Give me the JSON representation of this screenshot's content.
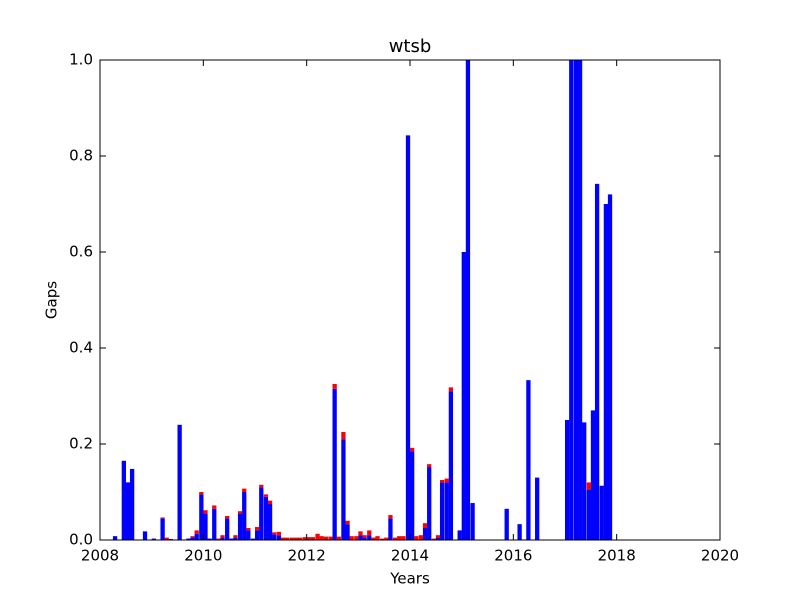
{
  "chart_data": {
    "type": "stacked_bar",
    "title": "wtsb",
    "xlabel": "Years",
    "ylabel": "Gaps",
    "x": [
      2008.25,
      2008.42,
      2008.5,
      2008.58,
      2008.83,
      2009.0,
      2009.17,
      2009.25,
      2009.33,
      2009.5,
      2009.67,
      2009.75,
      2009.83,
      2009.92,
      2010.0,
      2010.08,
      2010.17,
      2010.25,
      2010.33,
      2010.42,
      2010.5,
      2010.58,
      2010.67,
      2010.75,
      2010.83,
      2010.92,
      2011.0,
      2011.08,
      2011.17,
      2011.25,
      2011.33,
      2011.42,
      2011.5,
      2011.58,
      2011.67,
      2011.75,
      2011.83,
      2011.92,
      2012.0,
      2012.08,
      2012.17,
      2012.25,
      2012.33,
      2012.42,
      2012.5,
      2012.58,
      2012.67,
      2012.75,
      2012.83,
      2012.92,
      2013.0,
      2013.08,
      2013.17,
      2013.25,
      2013.33,
      2013.42,
      2013.5,
      2013.58,
      2013.67,
      2013.75,
      2013.83,
      2013.92,
      2014.0,
      2014.08,
      2014.17,
      2014.25,
      2014.33,
      2014.42,
      2014.5,
      2014.58,
      2014.67,
      2014.75,
      2014.92,
      2015.0,
      2015.08,
      2015.17,
      2015.83,
      2016.08,
      2016.25,
      2016.42,
      2017.0,
      2017.08,
      2017.17,
      2017.25,
      2017.33,
      2017.42,
      2017.5,
      2017.58,
      2017.67,
      2017.75,
      2017.83
    ],
    "bar_width": 0.083,
    "series": [
      {
        "color": "#0000ff",
        "values": [
          0.008,
          0.165,
          0.12,
          0.148,
          0.018,
          0.003,
          0.045,
          0,
          0.002,
          0.24,
          0.003,
          0.005,
          0.013,
          0.095,
          0.055,
          0.003,
          0.065,
          0,
          0.005,
          0.045,
          0.003,
          0.005,
          0.055,
          0.1,
          0.02,
          0.003,
          0.02,
          0.11,
          0.09,
          0.075,
          0.012,
          0.01,
          0,
          0,
          0,
          0,
          0,
          0,
          0,
          0,
          0,
          0,
          0,
          0,
          0.315,
          0,
          0.21,
          0.033,
          0,
          0,
          0.01,
          0.005,
          0.01,
          0,
          0,
          0,
          0,
          0.045,
          0,
          0,
          0,
          0.843,
          0.185,
          0,
          0,
          0.025,
          0.152,
          0,
          0.005,
          0.12,
          0.12,
          0.31,
          0.02,
          0.6,
          1.0,
          0.077,
          0.065,
          0.033,
          0.333,
          0.13,
          0.25,
          1.0,
          1.0,
          1.0,
          0.245,
          0.105,
          0.27,
          0.742,
          0.113,
          0.7,
          0.72
        ]
      },
      {
        "color": "#ff0000",
        "values": [
          0,
          0,
          0,
          0,
          0,
          0,
          0.002,
          0.005,
          0,
          0,
          0,
          0.003,
          0.007,
          0.005,
          0.007,
          0,
          0.007,
          0.003,
          0.005,
          0.005,
          0,
          0.005,
          0.005,
          0.007,
          0.005,
          0,
          0.007,
          0.005,
          0.005,
          0.007,
          0.004,
          0.007,
          0.005,
          0.005,
          0.005,
          0.005,
          0.005,
          0.006,
          0.006,
          0.006,
          0.013,
          0.008,
          0.007,
          0.007,
          0.01,
          0.007,
          0.015,
          0.007,
          0.008,
          0.008,
          0.008,
          0.005,
          0.01,
          0.005,
          0.008,
          0.003,
          0.005,
          0.007,
          0.005,
          0.008,
          0.008,
          0,
          0.007,
          0.008,
          0.01,
          0.01,
          0.006,
          0.003,
          0.005,
          0.005,
          0.008,
          0.008,
          0,
          0,
          0,
          0,
          0,
          0,
          0,
          0,
          0,
          0,
          0,
          0,
          0,
          0.015,
          0,
          0,
          0,
          0,
          0
        ]
      }
    ],
    "xlim": [
      2008,
      2020
    ],
    "xticks": [
      2008,
      2010,
      2012,
      2014,
      2016,
      2018,
      2020
    ],
    "ylim": [
      0,
      1
    ],
    "yticks": [
      {
        "value": 0,
        "label": "0.0"
      },
      0.2,
      0.4,
      0.6,
      0.8,
      {
        "value": 1,
        "label": "1.0"
      }
    ]
  }
}
